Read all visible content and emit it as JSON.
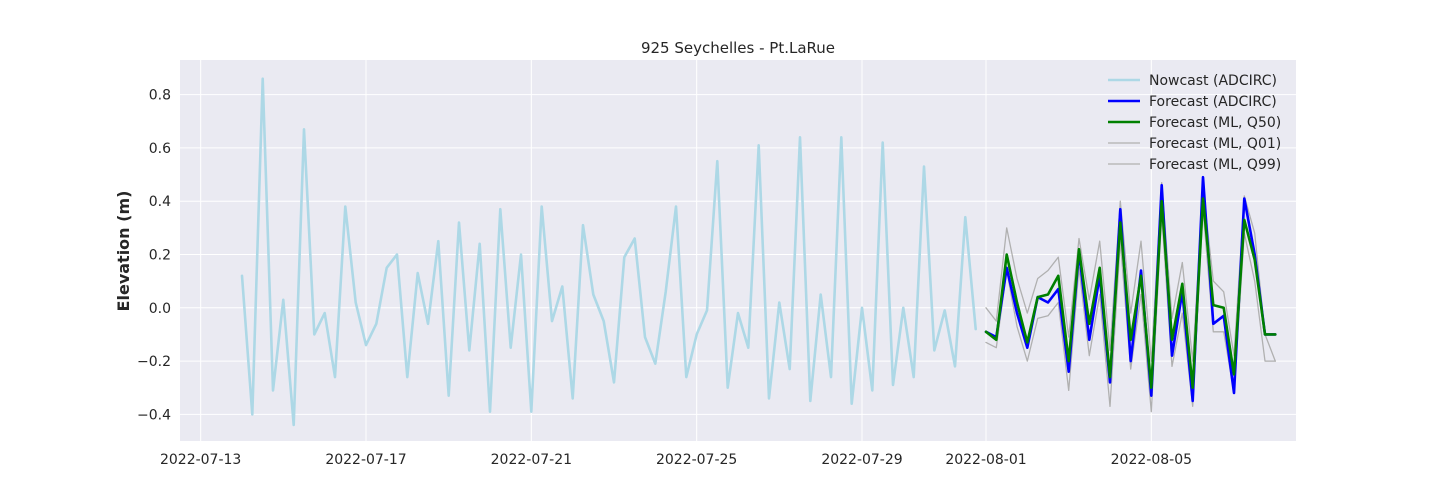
{
  "chart_data": {
    "type": "line",
    "title": "925 Seychelles - Pt.LaRue",
    "xlabel": "",
    "ylabel": "Elevation (m)",
    "xlim": [
      "2022-07-12T12:00",
      "2022-08-08T12:00"
    ],
    "ylim": [
      -0.5,
      0.93
    ],
    "x_ticks": [
      "2022-07-13",
      "2022-07-17",
      "2022-07-21",
      "2022-07-25",
      "2022-07-29",
      "2022-08-01",
      "2022-08-05"
    ],
    "y_ticks": [
      -0.4,
      -0.2,
      0.0,
      0.2,
      0.4,
      0.6,
      0.8
    ],
    "y_tick_labels": [
      "−0.4",
      "−0.2",
      "0.0",
      "0.2",
      "0.4",
      "0.6",
      "0.8"
    ],
    "grid": true,
    "legend_position": "top-right",
    "series": [
      {
        "name": "Nowcast (ADCIRC)",
        "color": "#add8e6",
        "style": "thick",
        "x": [
          "2022-07-14T00:00",
          "2022-07-14T06:00",
          "2022-07-14T12:00",
          "2022-07-14T18:00",
          "2022-07-15T00:00",
          "2022-07-15T06:00",
          "2022-07-15T12:00",
          "2022-07-15T18:00",
          "2022-07-16T00:00",
          "2022-07-16T06:00",
          "2022-07-16T12:00",
          "2022-07-16T18:00",
          "2022-07-17T00:00",
          "2022-07-17T06:00",
          "2022-07-17T12:00",
          "2022-07-17T18:00",
          "2022-07-18T00:00",
          "2022-07-18T06:00",
          "2022-07-18T12:00",
          "2022-07-18T18:00",
          "2022-07-19T00:00",
          "2022-07-19T06:00",
          "2022-07-19T12:00",
          "2022-07-19T18:00",
          "2022-07-20T00:00",
          "2022-07-20T06:00",
          "2022-07-20T12:00",
          "2022-07-20T18:00",
          "2022-07-21T00:00",
          "2022-07-21T06:00",
          "2022-07-21T12:00",
          "2022-07-21T18:00",
          "2022-07-22T00:00",
          "2022-07-22T06:00",
          "2022-07-22T12:00",
          "2022-07-22T18:00",
          "2022-07-23T00:00",
          "2022-07-23T06:00",
          "2022-07-23T12:00",
          "2022-07-23T18:00",
          "2022-07-24T00:00",
          "2022-07-24T06:00",
          "2022-07-24T12:00",
          "2022-07-24T18:00",
          "2022-07-25T00:00",
          "2022-07-25T06:00",
          "2022-07-25T12:00",
          "2022-07-25T18:00",
          "2022-07-26T00:00",
          "2022-07-26T06:00",
          "2022-07-26T12:00",
          "2022-07-26T18:00",
          "2022-07-27T00:00",
          "2022-07-27T06:00",
          "2022-07-27T12:00",
          "2022-07-27T18:00",
          "2022-07-28T00:00",
          "2022-07-28T06:00",
          "2022-07-28T12:00",
          "2022-07-28T18:00",
          "2022-07-29T00:00",
          "2022-07-29T06:00",
          "2022-07-29T12:00",
          "2022-07-29T18:00",
          "2022-07-30T00:00",
          "2022-07-30T06:00",
          "2022-07-30T12:00",
          "2022-07-30T18:00",
          "2022-07-31T00:00",
          "2022-07-31T06:00",
          "2022-07-31T12:00",
          "2022-07-31T18:00"
        ],
        "y": [
          0.12,
          -0.4,
          0.86,
          -0.31,
          0.03,
          -0.44,
          0.67,
          -0.1,
          -0.02,
          -0.26,
          0.38,
          0.02,
          -0.14,
          -0.06,
          0.15,
          0.2,
          -0.26,
          0.13,
          -0.06,
          0.25,
          -0.33,
          0.32,
          -0.16,
          0.24,
          -0.39,
          0.37,
          -0.15,
          0.2,
          -0.39,
          0.38,
          -0.05,
          0.08,
          -0.34,
          0.31,
          0.05,
          -0.05,
          -0.28,
          0.19,
          0.26,
          -0.11,
          -0.21,
          0.06,
          0.38,
          -0.26,
          -0.1,
          -0.01,
          0.55,
          -0.3,
          -0.02,
          -0.15,
          0.61,
          -0.34,
          0.02,
          -0.23,
          0.64,
          -0.35,
          0.05,
          -0.26,
          0.64,
          -0.36,
          0.0,
          -0.31,
          0.62,
          -0.29,
          0.0,
          -0.26,
          0.53,
          -0.16,
          -0.01,
          -0.22,
          0.34,
          -0.08
        ]
      },
      {
        "name": "Forecast (ADCIRC)",
        "color": "#0000ff",
        "style": "thick",
        "x": [
          "2022-08-01T00:00",
          "2022-08-01T06:00",
          "2022-08-01T12:00",
          "2022-08-01T18:00",
          "2022-08-02T00:00",
          "2022-08-02T06:00",
          "2022-08-02T12:00",
          "2022-08-02T18:00",
          "2022-08-03T00:00",
          "2022-08-03T06:00",
          "2022-08-03T12:00",
          "2022-08-03T18:00",
          "2022-08-04T00:00",
          "2022-08-04T06:00",
          "2022-08-04T12:00",
          "2022-08-04T18:00",
          "2022-08-05T00:00",
          "2022-08-05T06:00",
          "2022-08-05T12:00",
          "2022-08-05T18:00",
          "2022-08-06T00:00",
          "2022-08-06T06:00",
          "2022-08-06T12:00",
          "2022-08-06T18:00",
          "2022-08-07T00:00",
          "2022-08-07T06:00",
          "2022-08-07T12:00",
          "2022-08-07T18:00",
          "2022-08-08T00:00"
        ],
        "y": [
          -0.09,
          -0.11,
          0.15,
          -0.02,
          -0.15,
          0.04,
          0.02,
          0.07,
          -0.24,
          0.21,
          -0.12,
          0.12,
          -0.28,
          0.37,
          -0.2,
          0.14,
          -0.33,
          0.46,
          -0.18,
          0.06,
          -0.35,
          0.49,
          -0.06,
          -0.03,
          -0.32,
          0.41,
          0.2,
          -0.1,
          -0.1
        ]
      },
      {
        "name": "Forecast (ML, Q50)",
        "color": "#008000",
        "style": "thick",
        "x": [
          "2022-08-01T00:00",
          "2022-08-01T06:00",
          "2022-08-01T12:00",
          "2022-08-01T18:00",
          "2022-08-02T00:00",
          "2022-08-02T06:00",
          "2022-08-02T12:00",
          "2022-08-02T18:00",
          "2022-08-03T00:00",
          "2022-08-03T06:00",
          "2022-08-03T12:00",
          "2022-08-03T18:00",
          "2022-08-04T00:00",
          "2022-08-04T06:00",
          "2022-08-04T12:00",
          "2022-08-04T18:00",
          "2022-08-05T00:00",
          "2022-08-05T06:00",
          "2022-08-05T12:00",
          "2022-08-05T18:00",
          "2022-08-06T00:00",
          "2022-08-06T06:00",
          "2022-08-06T12:00",
          "2022-08-06T18:00",
          "2022-08-07T00:00",
          "2022-08-07T06:00",
          "2022-08-07T12:00",
          "2022-08-07T18:00",
          "2022-08-08T00:00"
        ],
        "y": [
          -0.09,
          -0.12,
          0.2,
          0.02,
          -0.13,
          0.04,
          0.05,
          0.12,
          -0.2,
          0.22,
          -0.06,
          0.15,
          -0.26,
          0.32,
          -0.12,
          0.12,
          -0.3,
          0.4,
          -0.12,
          0.09,
          -0.3,
          0.41,
          0.01,
          0.0,
          -0.25,
          0.33,
          0.18,
          -0.1,
          -0.1
        ]
      },
      {
        "name": "Forecast (ML, Q01)",
        "color": "#b0b0b0",
        "style": "thin",
        "x": [
          "2022-08-01T00:00",
          "2022-08-01T06:00",
          "2022-08-01T12:00",
          "2022-08-01T18:00",
          "2022-08-02T00:00",
          "2022-08-02T06:00",
          "2022-08-02T12:00",
          "2022-08-02T18:00",
          "2022-08-03T00:00",
          "2022-08-03T06:00",
          "2022-08-03T12:00",
          "2022-08-03T18:00",
          "2022-08-04T00:00",
          "2022-08-04T06:00",
          "2022-08-04T12:00",
          "2022-08-04T18:00",
          "2022-08-05T00:00",
          "2022-08-05T06:00",
          "2022-08-05T12:00",
          "2022-08-05T18:00",
          "2022-08-06T00:00",
          "2022-08-06T06:00",
          "2022-08-06T12:00",
          "2022-08-06T18:00",
          "2022-08-07T00:00",
          "2022-08-07T06:00",
          "2022-08-07T12:00",
          "2022-08-07T18:00",
          "2022-08-08T00:00"
        ],
        "y": [
          -0.13,
          -0.15,
          0.14,
          -0.07,
          -0.2,
          -0.04,
          -0.03,
          0.02,
          -0.31,
          0.15,
          -0.18,
          0.05,
          -0.37,
          0.25,
          -0.23,
          0.05,
          -0.39,
          0.35,
          -0.22,
          -0.02,
          -0.37,
          0.37,
          -0.09,
          -0.09,
          -0.32,
          0.28,
          0.1,
          -0.2,
          -0.2
        ]
      },
      {
        "name": "Forecast (ML, Q99)",
        "color": "#b0b0b0",
        "style": "thin",
        "x": [
          "2022-08-01T00:00",
          "2022-08-01T06:00",
          "2022-08-01T12:00",
          "2022-08-01T18:00",
          "2022-08-02T00:00",
          "2022-08-02T06:00",
          "2022-08-02T12:00",
          "2022-08-02T18:00",
          "2022-08-03T00:00",
          "2022-08-03T06:00",
          "2022-08-03T12:00",
          "2022-08-03T18:00",
          "2022-08-04T00:00",
          "2022-08-04T06:00",
          "2022-08-04T12:00",
          "2022-08-04T18:00",
          "2022-08-05T00:00",
          "2022-08-05T06:00",
          "2022-08-05T12:00",
          "2022-08-05T18:00",
          "2022-08-06T00:00",
          "2022-08-06T06:00",
          "2022-08-06T12:00",
          "2022-08-06T18:00",
          "2022-08-07T00:00",
          "2022-08-07T06:00",
          "2022-08-07T12:00",
          "2022-08-07T18:00",
          "2022-08-08T00:00"
        ],
        "y": [
          0.0,
          -0.05,
          0.3,
          0.11,
          -0.02,
          0.11,
          0.14,
          0.19,
          -0.11,
          0.26,
          0.03,
          0.25,
          -0.16,
          0.4,
          -0.02,
          0.25,
          -0.2,
          0.47,
          -0.04,
          0.17,
          -0.2,
          0.45,
          0.1,
          0.06,
          -0.18,
          0.42,
          0.28,
          -0.1,
          -0.2
        ]
      }
    ]
  }
}
